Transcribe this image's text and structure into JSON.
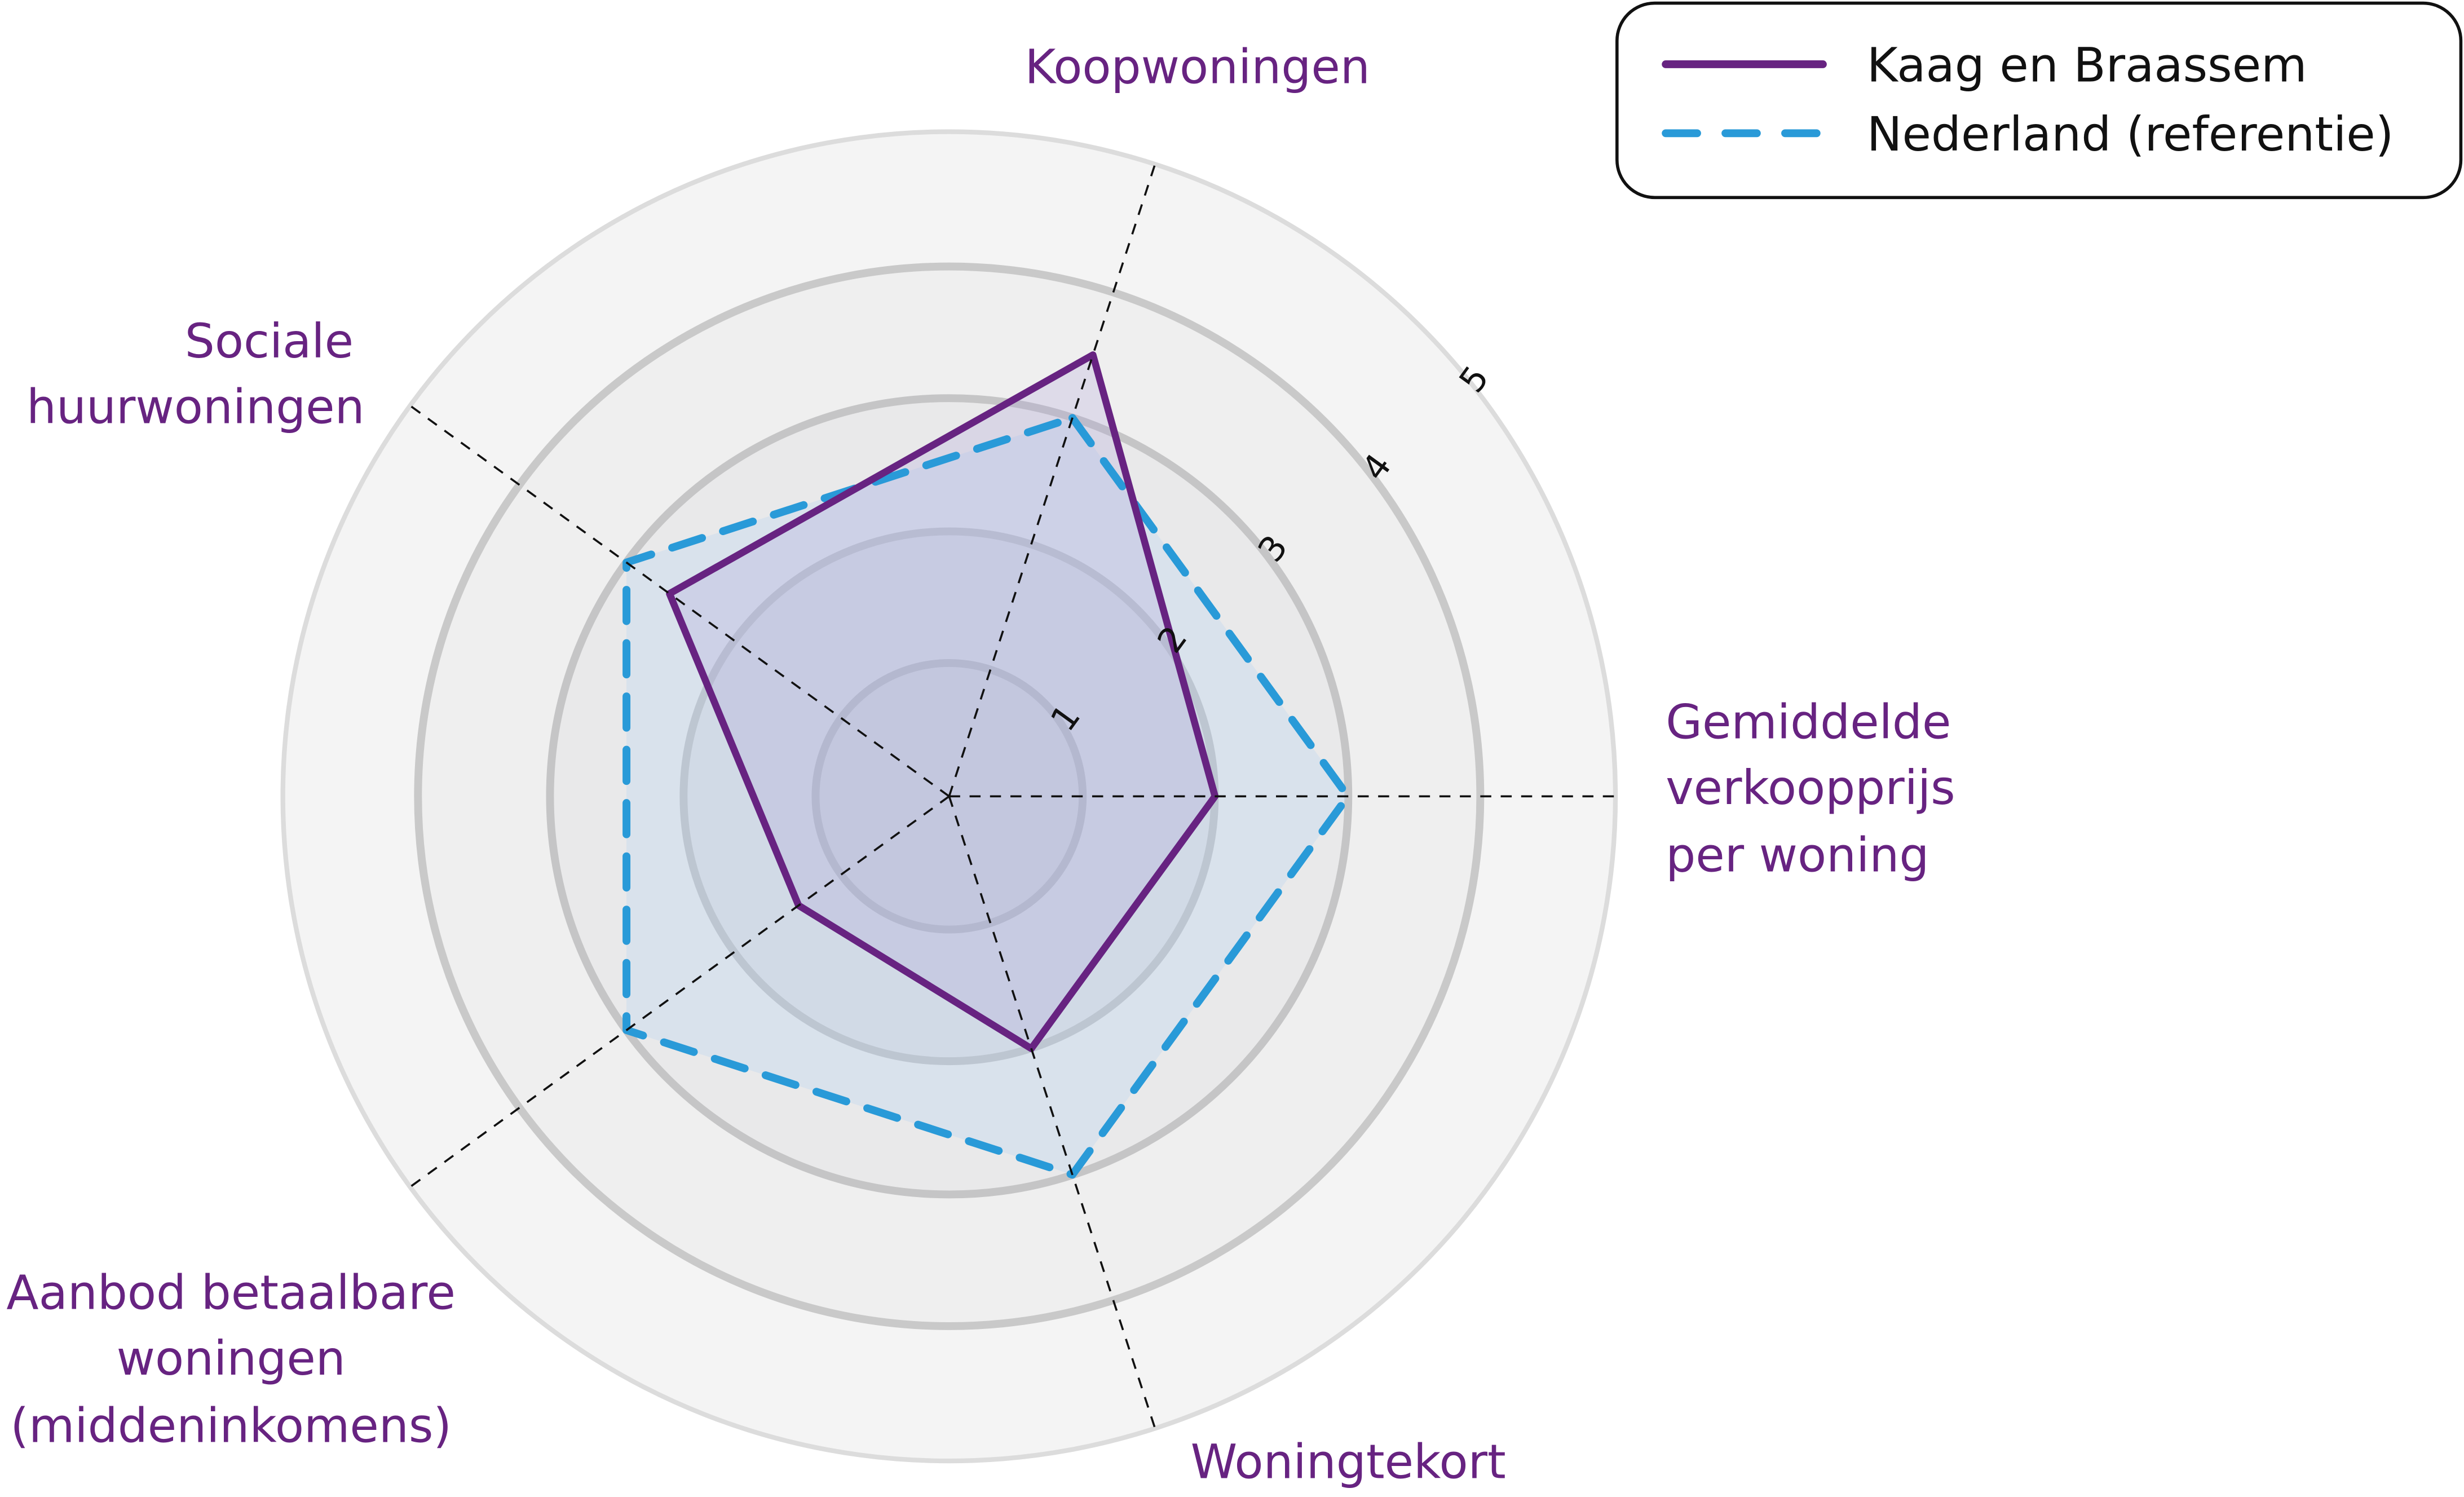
{
  "chart_data": {
    "type": "radar",
    "title": "",
    "axes": [
      "Koopwoningen",
      "Gemiddelde verkoopprijs per woning",
      "Woningtekort",
      "Aanbod betaalbare woningen (middeninkomens)",
      "Sociale huurwoningen"
    ],
    "axis_label_lines": [
      [
        "Koopwoningen"
      ],
      [
        "Gemiddelde",
        "verkoopprijs",
        "per woning"
      ],
      [
        "Woningtekort"
      ],
      [
        "Aanbod betaalbare",
        "woningen",
        "(middeninkomens)"
      ],
      [
        "Sociale",
        "huurwoningen"
      ]
    ],
    "rlim": [
      0,
      5
    ],
    "ticks": [
      "1",
      "2",
      "3",
      "4",
      "5"
    ],
    "grid": true,
    "legend_position": "top-right",
    "series": [
      {
        "name": "Kaag en Braassem",
        "values": [
          3.5,
          2.0,
          2.0,
          1.4,
          2.6
        ],
        "color": "#672381",
        "style": "solid"
      },
      {
        "name": "Nederland (referentie)",
        "values": [
          3.0,
          3.0,
          3.0,
          3.0,
          3.0
        ],
        "color": "#299ad8",
        "style": "dashed"
      }
    ]
  },
  "legend": {
    "items": [
      {
        "label": "Kaag en Braassem"
      },
      {
        "label": "Nederland (referentie)"
      }
    ]
  },
  "labels": {
    "koop": [
      "Koopwoningen"
    ],
    "prijs": [
      "Gemiddelde",
      "verkoopprijs",
      "per woning"
    ],
    "tekort": [
      "Woningtekort"
    ],
    "aanbod": [
      "Aanbod betaalbare",
      "woningen",
      "(middeninkomens)"
    ],
    "sociaal": [
      "Sociale",
      "huurwoningen"
    ]
  },
  "ticks": [
    "1",
    "2",
    "3",
    "4",
    "5"
  ]
}
